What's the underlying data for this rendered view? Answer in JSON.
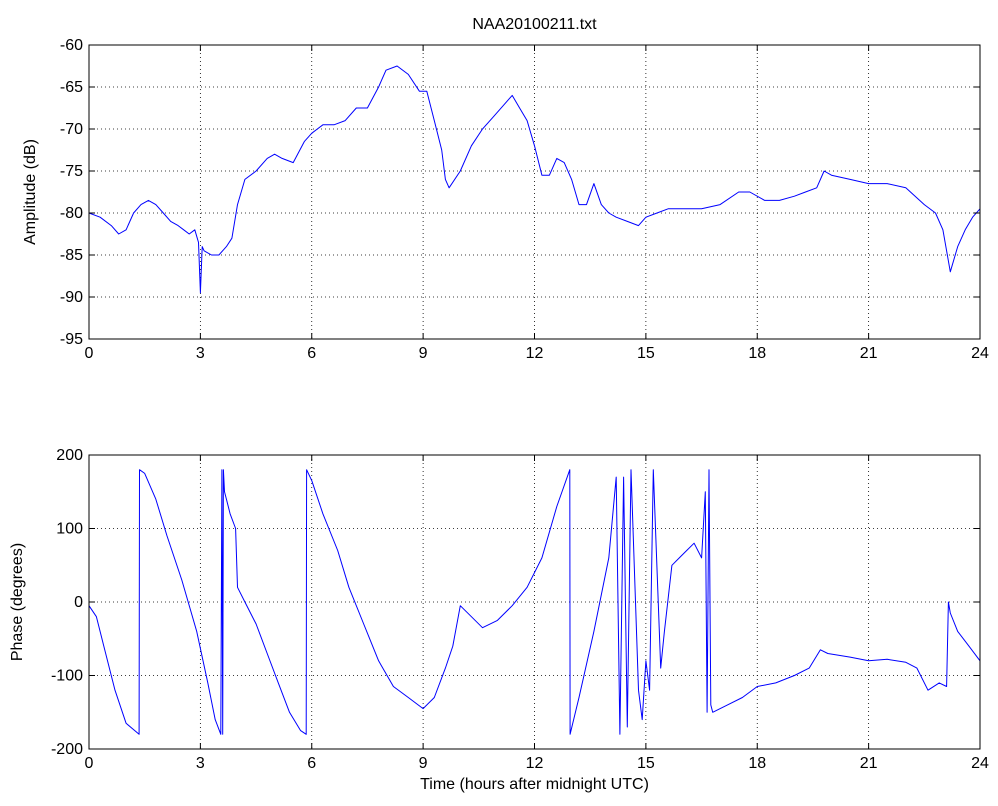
{
  "figure": {
    "title": "NAA20100211.txt"
  },
  "chart_data": [
    {
      "type": "line",
      "title": "NAA20100211.txt",
      "xlabel": "",
      "ylabel": "Amplitude (dB)",
      "xlim": [
        0,
        24
      ],
      "ylim": [
        -95,
        -60
      ],
      "xticks": [
        0,
        3,
        6,
        9,
        12,
        15,
        18,
        21,
        24
      ],
      "yticks": [
        -95,
        -90,
        -85,
        -80,
        -75,
        -70,
        -65,
        -60
      ],
      "grid": true,
      "line_color": "#0000ff",
      "series": [
        {
          "x": [
            0,
            0.3,
            0.6,
            0.8,
            1.0,
            1.2,
            1.4,
            1.6,
            1.8,
            2.0,
            2.2,
            2.4,
            2.55,
            2.7,
            2.85,
            2.95,
            3.0,
            3.05,
            3.1,
            3.3,
            3.5,
            3.7,
            3.85,
            4.0,
            4.2,
            4.5,
            4.8,
            5.0,
            5.2,
            5.5,
            5.8,
            6.0,
            6.3,
            6.6,
            6.9,
            7.2,
            7.5,
            7.8,
            8.0,
            8.3,
            8.6,
            8.9,
            9.1,
            9.3,
            9.5,
            9.6,
            9.7,
            10.0,
            10.3,
            10.6,
            10.9,
            11.2,
            11.4,
            11.6,
            11.8,
            12.0,
            12.2,
            12.4,
            12.6,
            12.8,
            13.0,
            13.2,
            13.4,
            13.6,
            13.8,
            14.0,
            14.2,
            14.5,
            14.8,
            15.0,
            15.3,
            15.6,
            16.0,
            16.5,
            17.0,
            17.5,
            17.8,
            18.2,
            18.6,
            19.0,
            19.3,
            19.6,
            19.8,
            20.0,
            20.5,
            21.0,
            21.5,
            22.0,
            22.5,
            22.8,
            23.0,
            23.2,
            23.4,
            23.6,
            23.8,
            24.0
          ],
          "values": [
            -80,
            -80.5,
            -81.5,
            -82.5,
            -82.0,
            -80,
            -79,
            -78.5,
            -79,
            -80,
            -81,
            -81.5,
            -82,
            -82.5,
            -82,
            -83.5,
            -89.5,
            -84,
            -84.5,
            -85,
            -85,
            -84,
            -83,
            -79,
            -76,
            -75,
            -73.5,
            -73,
            -73.5,
            -74,
            -71.5,
            -70.5,
            -69.5,
            -69.5,
            -69,
            -67.5,
            -67.5,
            -65,
            -63,
            -62.5,
            -63.5,
            -65.5,
            -65.5,
            -69,
            -72.5,
            -76,
            -77,
            -75,
            -72,
            -70,
            -68.5,
            -67,
            -66,
            -67.5,
            -69,
            -72,
            -75.5,
            -75.5,
            -73.5,
            -74,
            -76,
            -79,
            -79,
            -76.5,
            -79,
            -80,
            -80.5,
            -81,
            -81.5,
            -80.5,
            -80,
            -79.5,
            -79.5,
            -79.5,
            -79,
            -77.5,
            -77.5,
            -78.5,
            -78.5,
            -78,
            -77.5,
            -77,
            -75,
            -75.5,
            -76,
            -76.5,
            -76.5,
            -77,
            -79,
            -80,
            -82,
            -87,
            -84,
            -82,
            -80.5,
            -79.5
          ]
        }
      ]
    },
    {
      "type": "line",
      "title": "",
      "xlabel": "Time (hours after midnight UTC)",
      "ylabel": "Phase (degrees)",
      "xlim": [
        0,
        24
      ],
      "ylim": [
        -200,
        200
      ],
      "xticks": [
        0,
        3,
        6,
        9,
        12,
        15,
        18,
        21,
        24
      ],
      "yticks": [
        -200,
        -100,
        0,
        100,
        200
      ],
      "grid": true,
      "line_color": "#0000ff",
      "series": [
        {
          "x": [
            0,
            0.2,
            0.4,
            0.7,
            1.0,
            1.3,
            1.35,
            1.36,
            1.5,
            1.8,
            2.1,
            2.5,
            2.9,
            3.2,
            3.4,
            3.55,
            3.58,
            3.6,
            3.62,
            3.65,
            3.7,
            3.8,
            3.95,
            4.0,
            4.2,
            4.5,
            4.8,
            5.1,
            5.4,
            5.7,
            5.85,
            5.86,
            6.0,
            6.3,
            6.7,
            7.0,
            7.4,
            7.8,
            8.2,
            8.6,
            9.0,
            9.3,
            9.6,
            9.8,
            10.0,
            10.3,
            10.6,
            11.0,
            11.4,
            11.8,
            12.2,
            12.6,
            12.95,
            12.96,
            13.2,
            13.6,
            14.0,
            14.2,
            14.3,
            14.4,
            14.5,
            14.6,
            14.8,
            14.9,
            15.0,
            15.1,
            15.2,
            15.4,
            15.5,
            15.7,
            15.9,
            16.1,
            16.3,
            16.5,
            16.6,
            16.65,
            16.7,
            16.75,
            16.8,
            17.2,
            17.6,
            18.0,
            18.5,
            19.0,
            19.4,
            19.7,
            19.9,
            20.5,
            21.0,
            21.5,
            22.0,
            22.3,
            22.6,
            22.9,
            23.1,
            23.15,
            23.2,
            23.4,
            23.7,
            24.0
          ],
          "values": [
            -5,
            -20,
            -60,
            -120,
            -165,
            -178,
            -180,
            180,
            175,
            140,
            90,
            30,
            -40,
            -110,
            -160,
            -180,
            180,
            -180,
            180,
            150,
            140,
            120,
            100,
            20,
            0,
            -30,
            -70,
            -110,
            -150,
            -175,
            -180,
            180,
            165,
            120,
            70,
            20,
            -30,
            -80,
            -115,
            -130,
            -145,
            -130,
            -90,
            -60,
            -5,
            -20,
            -35,
            -25,
            -5,
            20,
            60,
            130,
            180,
            -180,
            -130,
            -40,
            60,
            170,
            -180,
            170,
            -170,
            180,
            -120,
            -160,
            -80,
            -120,
            180,
            -90,
            -40,
            50,
            60,
            70,
            80,
            60,
            150,
            -150,
            180,
            -140,
            -150,
            -140,
            -130,
            -115,
            -110,
            -100,
            -90,
            -65,
            -70,
            -75,
            -80,
            -78,
            -82,
            -90,
            -120,
            -110,
            -115,
            0,
            -15,
            -40,
            -60,
            -80
          ]
        }
      ]
    }
  ]
}
